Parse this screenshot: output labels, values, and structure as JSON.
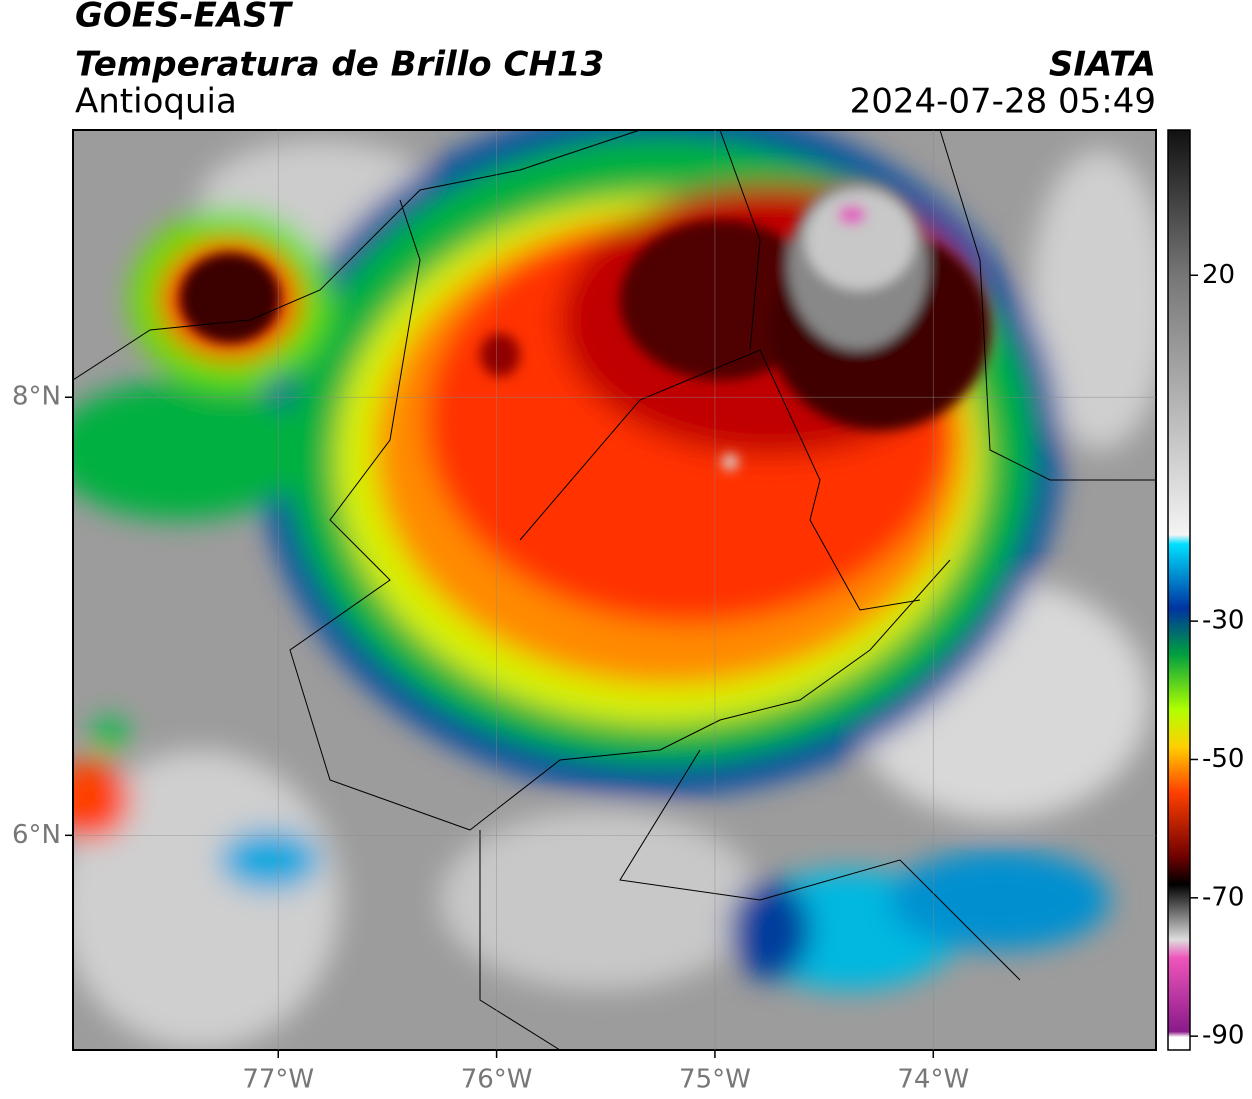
{
  "chart_data": {
    "type": "map",
    "title": "GOES-EAST",
    "subtitle": "Temperatura de Brillo CH13",
    "region": "Antioquia",
    "source": "SIATA",
    "datetime": "2024-07-28 05:49",
    "xlim": [
      -77.94,
      -72.98
    ],
    "ylim": [
      5.02,
      9.22
    ],
    "xticks": [
      {
        "value": -77,
        "label": "77°W"
      },
      {
        "value": -76,
        "label": "76°W"
      },
      {
        "value": -75,
        "label": "75°W"
      },
      {
        "value": -74,
        "label": "74°W"
      }
    ],
    "yticks": [
      {
        "value": 6,
        "label": "6°N"
      },
      {
        "value": 8,
        "label": "8°N"
      }
    ],
    "colorbar_lim": [
      -92,
      41
    ],
    "colorbar_ticks": [
      20,
      -30,
      -50,
      -70,
      -90
    ],
    "grid": true
  }
}
